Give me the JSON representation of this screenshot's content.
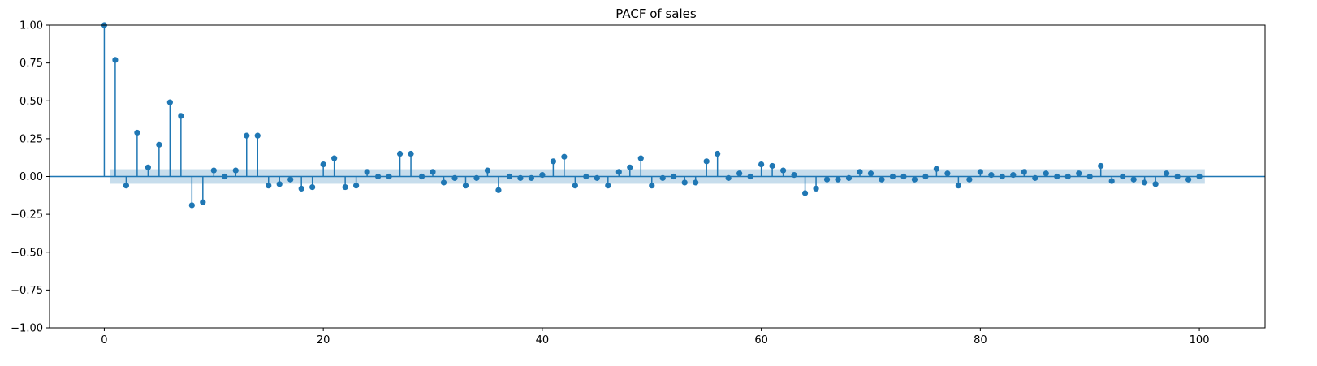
{
  "chart_data": {
    "type": "stem",
    "title": "PACF of sales",
    "xlabel": "",
    "ylabel": "",
    "xlim": [
      -5,
      106
    ],
    "ylim": [
      -1.0,
      1.0
    ],
    "xticks": [
      0,
      20,
      40,
      60,
      80,
      100
    ],
    "yticks": [
      -1.0,
      -0.75,
      -0.5,
      -0.25,
      0.0,
      0.25,
      0.5,
      0.75,
      1.0
    ],
    "xtick_labels": [
      "0",
      "20",
      "40",
      "60",
      "80",
      "100"
    ],
    "ytick_labels": [
      "−1.00",
      "−0.75",
      "−0.50",
      "−0.25",
      "0.00",
      "0.25",
      "0.50",
      "0.75",
      "1.00"
    ],
    "grid": false,
    "colors": {
      "stem": "#1f77b4",
      "confidence_band": "#1f77b4"
    },
    "confidence_band": {
      "lower": -0.048,
      "upper": 0.048,
      "x_start": 0.5,
      "x_end": 100.5
    },
    "lags": [
      0,
      1,
      2,
      3,
      4,
      5,
      6,
      7,
      8,
      9,
      10,
      11,
      12,
      13,
      14,
      15,
      16,
      17,
      18,
      19,
      20,
      21,
      22,
      23,
      24,
      25,
      26,
      27,
      28,
      29,
      30,
      31,
      32,
      33,
      34,
      35,
      36,
      37,
      38,
      39,
      40,
      41,
      42,
      43,
      44,
      45,
      46,
      47,
      48,
      49,
      50,
      51,
      52,
      53,
      54,
      55,
      56,
      57,
      58,
      59,
      60,
      61,
      62,
      63,
      64,
      65,
      66,
      67,
      68,
      69,
      70,
      71,
      72,
      73,
      74,
      75,
      76,
      77,
      78,
      79,
      80,
      81,
      82,
      83,
      84,
      85,
      86,
      87,
      88,
      89,
      90,
      91,
      92,
      93,
      94,
      95,
      96,
      97,
      98,
      99,
      100
    ],
    "values": [
      1.0,
      0.77,
      -0.06,
      0.29,
      0.06,
      0.21,
      0.49,
      0.4,
      -0.19,
      -0.17,
      0.04,
      0.0,
      0.04,
      0.27,
      0.27,
      -0.06,
      -0.05,
      -0.02,
      -0.08,
      -0.07,
      0.08,
      0.12,
      -0.07,
      -0.06,
      0.03,
      0.0,
      0.0,
      0.15,
      0.15,
      0.0,
      0.03,
      -0.04,
      -0.01,
      -0.06,
      -0.01,
      0.04,
      -0.09,
      0.0,
      -0.01,
      -0.01,
      0.01,
      0.1,
      0.13,
      -0.06,
      0.0,
      -0.01,
      -0.06,
      0.03,
      0.06,
      0.12,
      -0.06,
      -0.01,
      0.0,
      -0.04,
      -0.04,
      0.1,
      0.15,
      -0.01,
      0.02,
      0.0,
      0.08,
      0.07,
      0.04,
      0.01,
      -0.11,
      -0.08,
      -0.02,
      -0.02,
      -0.01,
      0.03,
      0.02,
      -0.02,
      0.0,
      0.0,
      -0.02,
      0.0,
      0.05,
      0.02,
      -0.06,
      -0.02,
      0.03,
      0.01,
      0.0,
      0.01,
      0.03,
      -0.01,
      0.02,
      0.0,
      0.0,
      0.02,
      0.0,
      0.07,
      -0.03,
      0.0,
      -0.02,
      -0.04,
      -0.05,
      0.02,
      0.0,
      -0.02,
      0.0
    ]
  }
}
